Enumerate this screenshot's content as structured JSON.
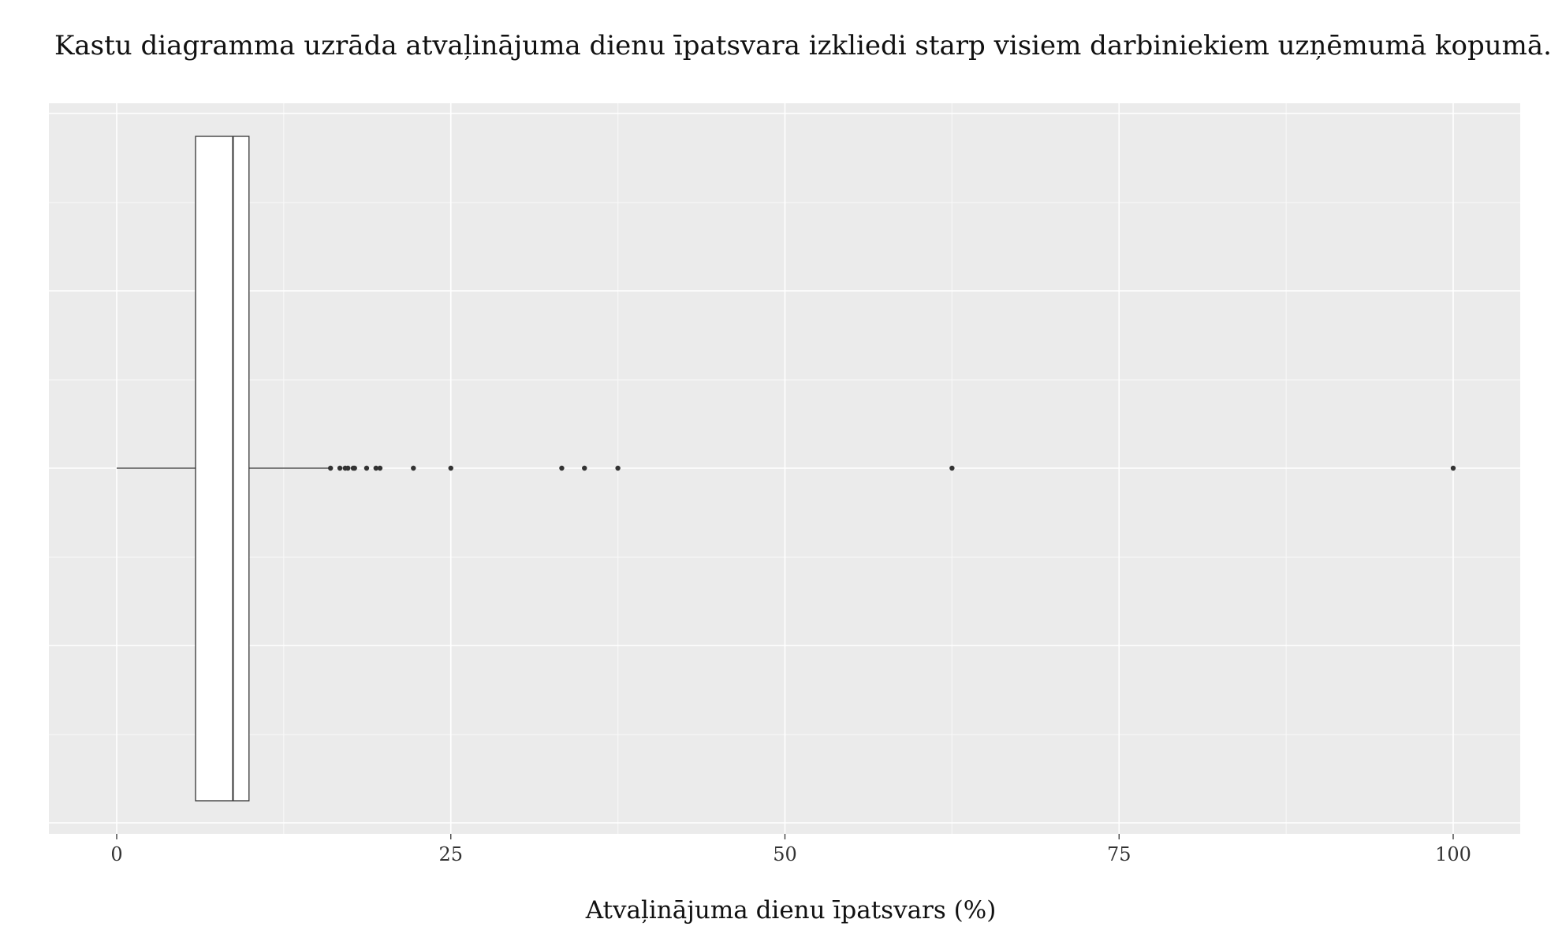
{
  "title": "Kastu diagramma uzrāda atvaļinājuma dienu īpatsvara izkliedi starp visiem darbiniekiem uzņēmumā kopumā.",
  "chart_data": {
    "type": "boxplot",
    "orientation": "horizontal",
    "title": "Kastu diagramma uzrāda atvaļinājuma dienu īpatsvara izkliedi starp visiem darbiniekiem uzņēmumā kopumā.",
    "xlabel": "Atvaļinājuma dienu īpatsvars (%)",
    "ylabel": "",
    "xlim": [
      -5,
      105
    ],
    "xticks": [
      0,
      25,
      50,
      75,
      100
    ],
    "xtick_labels": [
      "0",
      "25",
      "50",
      "75",
      "100"
    ],
    "grid": true,
    "box": {
      "whisker_low": 0,
      "q1": 5.9,
      "median": 8.7,
      "q3": 9.9,
      "whisker_high": 15.9
    },
    "outliers": [
      16.0,
      16.7,
      17.1,
      17.3,
      17.7,
      17.8,
      18.7,
      19.4,
      19.7,
      22.2,
      25.0,
      33.3,
      35.0,
      37.5,
      62.5,
      100.0
    ]
  }
}
